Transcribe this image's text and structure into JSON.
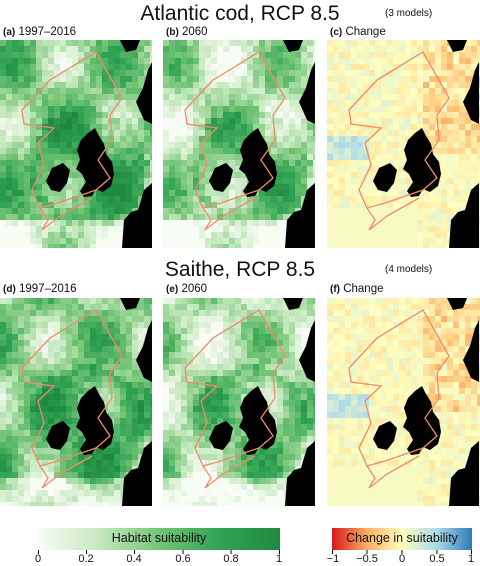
{
  "rows": [
    {
      "title": "Atlantic cod, RCP 8.5",
      "models": "(3 models)",
      "panels": [
        {
          "id": "(a)",
          "label": "1997–2016"
        },
        {
          "id": "(b)",
          "label": "2060"
        },
        {
          "id": "(c)",
          "label": "Change"
        }
      ]
    },
    {
      "title": "Saithe, RCP 8.5",
      "models": "(4 models)",
      "panels": [
        {
          "id": "(d)",
          "label": "1997–2016"
        },
        {
          "id": "(e)",
          "label": "2060"
        },
        {
          "id": "(f)",
          "label": "Change"
        }
      ]
    }
  ],
  "legend_suitability": {
    "label": "Habitat suitability",
    "ticks": [
      "0",
      "0.2",
      "0.4",
      "0.6",
      "0.8",
      "1"
    ],
    "colors": [
      "#f7fcf5",
      "#c7e9c0",
      "#74c476",
      "#31a354",
      "#1f8a3e"
    ]
  },
  "legend_change": {
    "label": "Change in suitability",
    "ticks": [
      "−1",
      "−0.5",
      "0",
      "0.5",
      "1"
    ],
    "colors": [
      "#d7191c",
      "#fdae61",
      "#ffffbf",
      "#abd9e9",
      "#2c7bb6"
    ]
  },
  "colors": {
    "land": "#000000",
    "outline": "#f08a6a"
  }
}
